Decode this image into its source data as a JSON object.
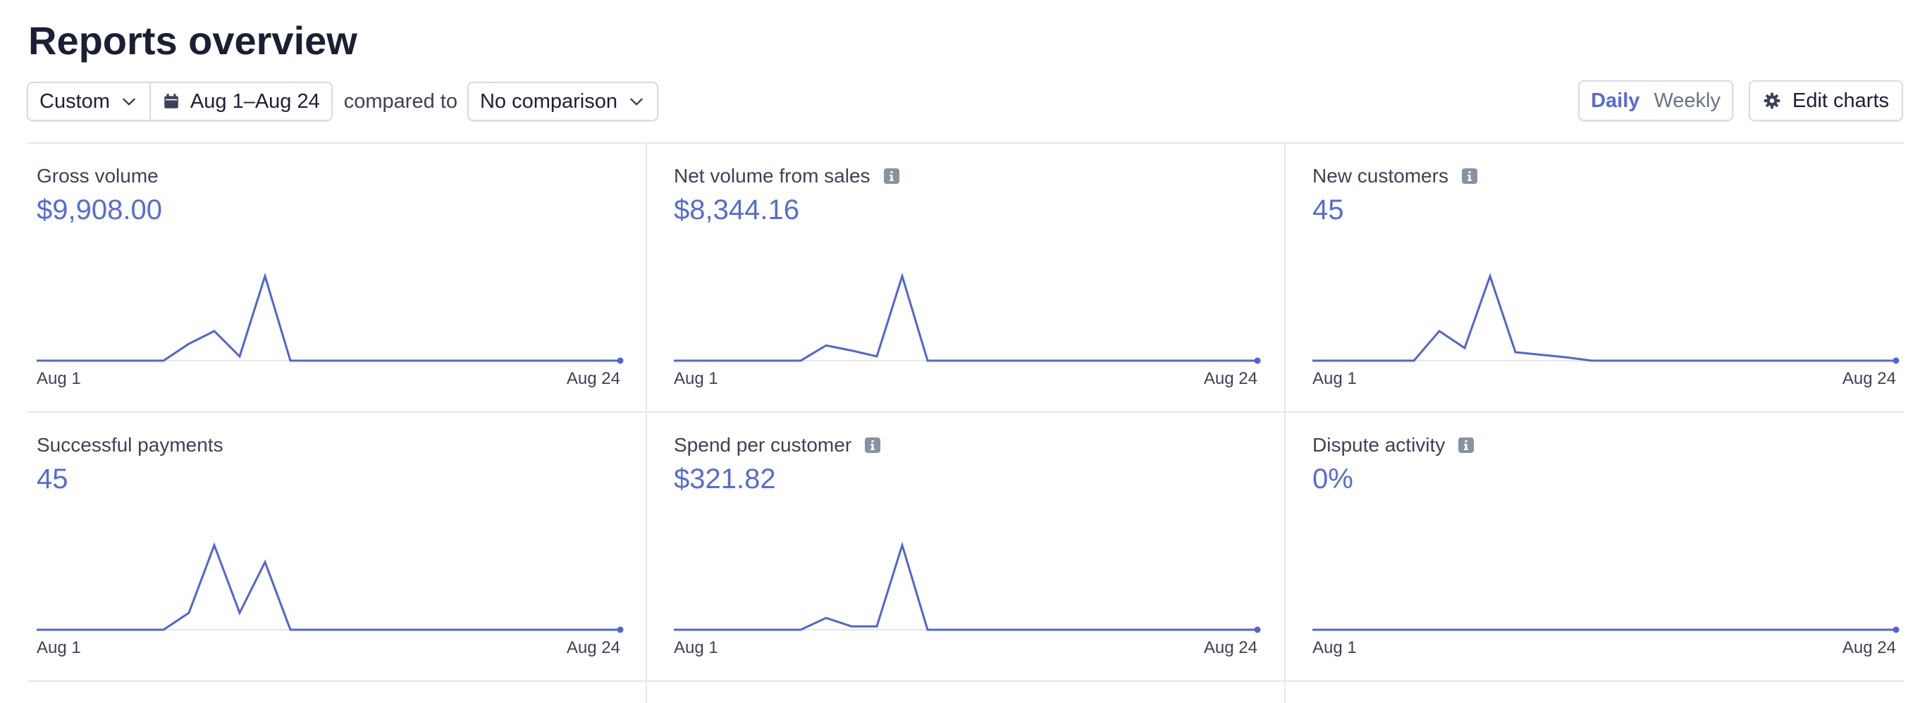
{
  "page": {
    "title": "Reports overview"
  },
  "filters": {
    "range_preset": "Custom",
    "date_range": "Aug 1–Aug 24",
    "compared_to_label": "compared to",
    "comparison": "No comparison"
  },
  "view_toggle": {
    "daily": "Daily",
    "weekly": "Weekly",
    "selected": "Daily"
  },
  "edit_charts_label": "Edit charts",
  "colors": {
    "accent": "#556cd6",
    "line": "#4f64d8",
    "baseline": "#e3e8ee",
    "border": "#d8dbe3"
  },
  "cards": [
    {
      "label": "Gross volume",
      "value": "$9,908.00",
      "has_info": false,
      "start_label": "Aug 1",
      "end_label": "Aug 24",
      "series": [
        0,
        0,
        0,
        0,
        0,
        0,
        0.2,
        0.35,
        0.05,
        1.0,
        0,
        0,
        0,
        0,
        0,
        0,
        0,
        0,
        0,
        0,
        0,
        0,
        0,
        0
      ]
    },
    {
      "label": "Net volume from sales",
      "value": "$8,344.16",
      "has_info": true,
      "start_label": "Aug 1",
      "end_label": "Aug 24",
      "series": [
        0,
        0,
        0,
        0,
        0,
        0,
        0.18,
        0.12,
        0.05,
        1.0,
        0,
        0,
        0,
        0,
        0,
        0,
        0,
        0,
        0,
        0,
        0,
        0,
        0,
        0
      ]
    },
    {
      "label": "New customers",
      "value": "45",
      "has_info": true,
      "start_label": "Aug 1",
      "end_label": "Aug 24",
      "series": [
        0,
        0,
        0,
        0,
        0,
        0.35,
        0.15,
        1.0,
        0.1,
        0.07,
        0.04,
        0,
        0,
        0,
        0,
        0,
        0,
        0,
        0,
        0,
        0,
        0,
        0,
        0
      ]
    },
    {
      "label": "Successful payments",
      "value": "45",
      "has_info": false,
      "start_label": "Aug 1",
      "end_label": "Aug 24",
      "series": [
        0,
        0,
        0,
        0,
        0,
        0,
        0.2,
        1.0,
        0.2,
        0.8,
        0,
        0,
        0,
        0,
        0,
        0,
        0,
        0,
        0,
        0,
        0,
        0,
        0,
        0
      ]
    },
    {
      "label": "Spend per customer",
      "value": "$321.82",
      "has_info": true,
      "start_label": "Aug 1",
      "end_label": "Aug 24",
      "series": [
        0,
        0,
        0,
        0,
        0,
        0,
        0.14,
        0.04,
        0.04,
        1.0,
        0,
        0,
        0,
        0,
        0,
        0,
        0,
        0,
        0,
        0,
        0,
        0,
        0,
        0
      ]
    },
    {
      "label": "Dispute activity",
      "value": "0%",
      "has_info": true,
      "start_label": "Aug 1",
      "end_label": "Aug 24",
      "series": [
        0,
        0,
        0,
        0,
        0,
        0,
        0,
        0,
        0,
        0,
        0,
        0,
        0,
        0,
        0,
        0,
        0,
        0,
        0,
        0,
        0,
        0,
        0,
        0
      ]
    }
  ]
}
